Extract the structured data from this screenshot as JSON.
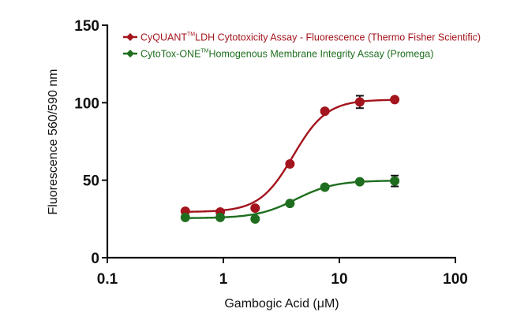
{
  "chart_data": {
    "type": "line",
    "title": "",
    "xlabel": "Gambogic Acid (μM)",
    "ylabel": "Fluorescence 560/590 nm",
    "xscale": "log",
    "xlim": [
      0.1,
      100
    ],
    "ylim": [
      0,
      150
    ],
    "xticks": [
      0.1,
      1,
      10,
      100
    ],
    "xtick_labels": [
      "0.1",
      "1",
      "10",
      "100"
    ],
    "yticks": [
      0,
      50,
      100,
      150
    ],
    "ytick_labels": [
      "0",
      "50",
      "100",
      "150"
    ],
    "grid": false,
    "legend_position": "top-left inside",
    "x": [
      0.47,
      0.94,
      1.88,
      3.75,
      7.5,
      15,
      30
    ],
    "series": [
      {
        "name": "CyQUANT™ LDH Cytotoxicity Assay - Fluorescence (Thermo Fisher Scientific)",
        "label_main": "CyQUANT",
        "label_sup": "TM",
        "label_rest": "LDH Cytotoxicity Assay - Fluorescence (Thermo Fisher Scientific)",
        "color": "#a3141c",
        "values": [
          30,
          29.5,
          32,
          60.5,
          94.5,
          100.5,
          102
        ],
        "error": [
          0,
          0,
          0,
          0,
          0,
          4,
          0
        ],
        "fit": {
          "bottom": 29.5,
          "top": 102,
          "ec50": 4.0,
          "hill": 3.0
        }
      },
      {
        "name": "CytoTox-ONE™ Homogenous Membrane Integrity Assay (Promega)",
        "label_main": "CytoTox-ONE",
        "label_sup": "TM",
        "label_rest": "Homogenous Membrane Integrity Assay (Promega)",
        "color": "#1f6e1f",
        "values": [
          26,
          26,
          25,
          35,
          45.5,
          49,
          49.5
        ],
        "error": [
          0,
          0,
          0,
          0,
          0,
          0,
          3.5
        ],
        "fit": {
          "bottom": 25.5,
          "top": 49.8,
          "ec50": 4.2,
          "hill": 2.6
        }
      }
    ]
  }
}
